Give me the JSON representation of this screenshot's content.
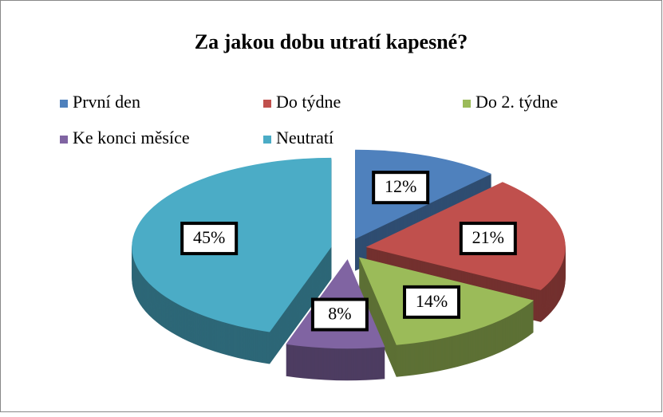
{
  "chart_data": {
    "type": "pie3d",
    "title": "Za jakou dobu utratí kapesné?",
    "categories": [
      "První den",
      "Do týdne",
      "Do 2. týdne",
      "Ke konci měsíce",
      "Neutratí"
    ],
    "values": [
      12,
      21,
      14,
      8,
      45
    ],
    "value_labels": [
      "12%",
      "21%",
      "14%",
      "8%",
      "45%"
    ],
    "colors": [
      "#4f81bd",
      "#c0504d",
      "#9bbb59",
      "#8064a2",
      "#4bacc6"
    ],
    "legend": "top"
  }
}
